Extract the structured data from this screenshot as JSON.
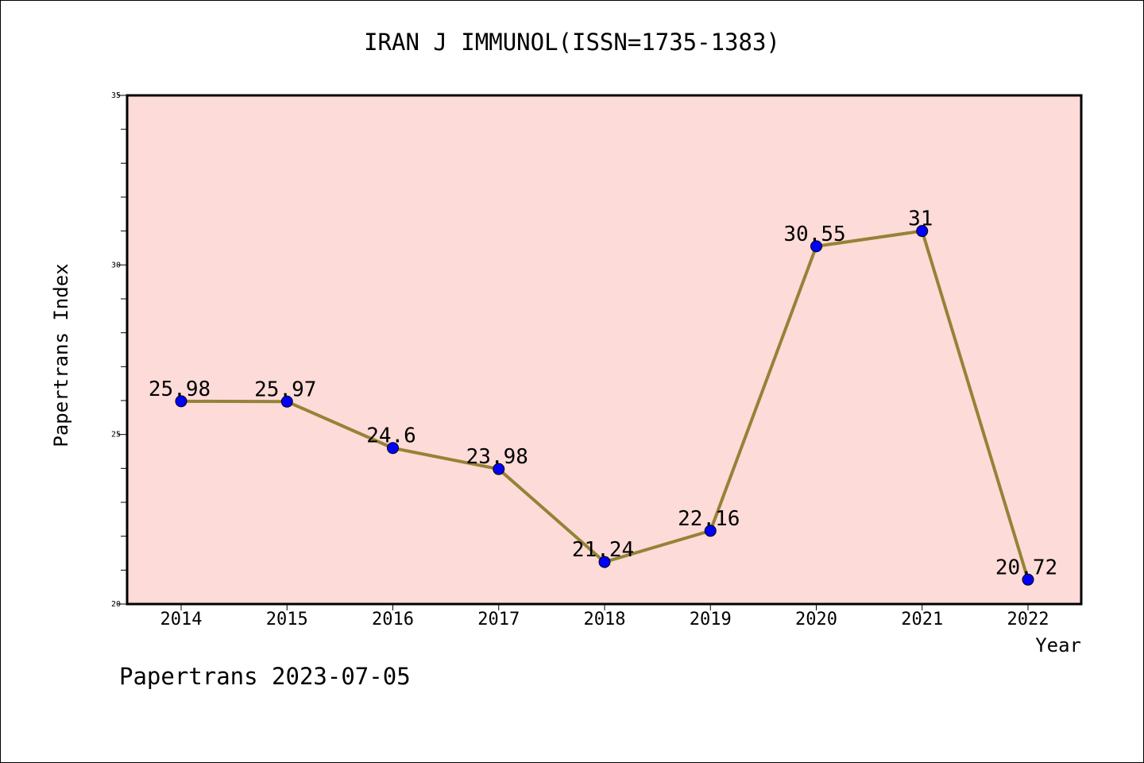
{
  "chart_data": {
    "type": "line",
    "title": "IRAN J IMMUNOL(ISSN=1735-1383)",
    "xlabel": "Year",
    "ylabel": "Papertrans Index",
    "categories": [
      "2014",
      "2015",
      "2016",
      "2017",
      "2018",
      "2019",
      "2020",
      "2021",
      "2022"
    ],
    "values": [
      25.98,
      25.97,
      24.6,
      23.98,
      21.24,
      22.16,
      30.55,
      31,
      20.72
    ],
    "data_labels": [
      "25.98",
      "25.97",
      "24.6",
      "23.98",
      "21.24",
      "22.16",
      "30.55",
      "31",
      "20.72"
    ],
    "ylim": [
      20,
      35
    ],
    "yticks": [
      20,
      25,
      30,
      35
    ],
    "grid": false,
    "colors": {
      "plot_background": "#fddbd8",
      "line": "#948337",
      "marker": "#0000ff"
    }
  },
  "footer": "Papertrans 2023-07-05"
}
